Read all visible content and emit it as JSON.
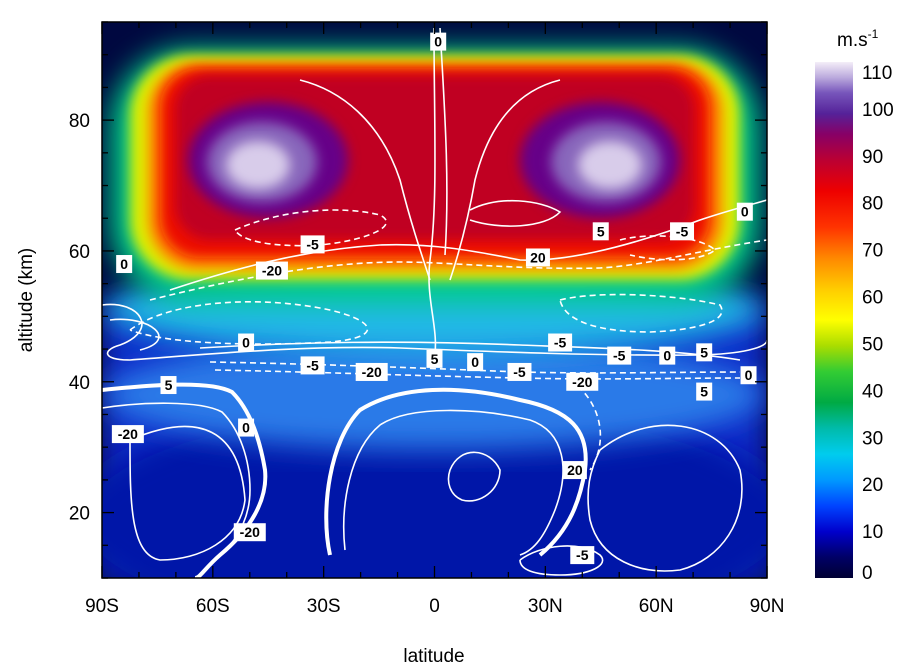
{
  "chart_data": {
    "type": "heatmap",
    "title": "",
    "xlabel": "latitude",
    "ylabel": "altitude (km)",
    "xlim": [
      -90,
      90
    ],
    "ylim": [
      10,
      95
    ],
    "x_ticks": [
      {
        "value": -90,
        "label": "90S"
      },
      {
        "value": -60,
        "label": "60S"
      },
      {
        "value": -30,
        "label": "30S"
      },
      {
        "value": 0,
        "label": "0"
      },
      {
        "value": 30,
        "label": "30N"
      },
      {
        "value": 60,
        "label": "60N"
      },
      {
        "value": 90,
        "label": "90N"
      }
    ],
    "y_ticks": [
      {
        "value": 20,
        "label": "20"
      },
      {
        "value": 40,
        "label": "40"
      },
      {
        "value": 60,
        "label": "60"
      },
      {
        "value": 80,
        "label": "80"
      }
    ],
    "colorbar": {
      "unit_base": "m.s",
      "unit_exp": "-1",
      "range": [
        0,
        110
      ],
      "ticks": [
        0,
        10,
        20,
        30,
        40,
        50,
        60,
        70,
        80,
        90,
        100,
        110
      ]
    },
    "shaded_field": {
      "description_source": "colour-filled wind speed",
      "jet_cores": [
        {
          "lat": -45,
          "alt": 73,
          "value": 105
        },
        {
          "lat": 45,
          "alt": 73,
          "value": 105
        }
      ],
      "background_max_alt": 88
    },
    "contour_labels": [
      {
        "text": "0",
        "lat": 1,
        "alt": 92
      },
      {
        "text": "0",
        "lat": 84,
        "alt": 66
      },
      {
        "text": "5",
        "lat": 45,
        "alt": 63
      },
      {
        "text": "-5",
        "lat": 67,
        "alt": 63
      },
      {
        "text": "-5",
        "lat": -33,
        "alt": 61
      },
      {
        "text": "0",
        "lat": -84,
        "alt": 58
      },
      {
        "text": "-20",
        "lat": -44,
        "alt": 57
      },
      {
        "text": "20",
        "lat": 28,
        "alt": 59
      },
      {
        "text": "0",
        "lat": -51,
        "alt": 46
      },
      {
        "text": "-5",
        "lat": 34,
        "alt": 46
      },
      {
        "text": "5",
        "lat": 0,
        "alt": 43.5
      },
      {
        "text": "0",
        "lat": 11,
        "alt": 43
      },
      {
        "text": "-5",
        "lat": -33,
        "alt": 42.5
      },
      {
        "text": "-20",
        "lat": -17,
        "alt": 41.5
      },
      {
        "text": "-5",
        "lat": 23,
        "alt": 41.5
      },
      {
        "text": "-5",
        "lat": 50,
        "alt": 44
      },
      {
        "text": "0",
        "lat": 63,
        "alt": 44
      },
      {
        "text": "5",
        "lat": 73,
        "alt": 44.5
      },
      {
        "text": "0",
        "lat": 85,
        "alt": 41
      },
      {
        "text": "-20",
        "lat": 40,
        "alt": 40
      },
      {
        "text": "5",
        "lat": -72,
        "alt": 39.5
      },
      {
        "text": "5",
        "lat": 73,
        "alt": 38.5
      },
      {
        "text": "0",
        "lat": -51,
        "alt": 33
      },
      {
        "text": "-20",
        "lat": -83,
        "alt": 32
      },
      {
        "text": "20",
        "lat": 38,
        "alt": 26.5
      },
      {
        "text": "-20",
        "lat": -50,
        "alt": 17
      },
      {
        "text": "-5",
        "lat": 40,
        "alt": 13.5
      }
    ]
  }
}
